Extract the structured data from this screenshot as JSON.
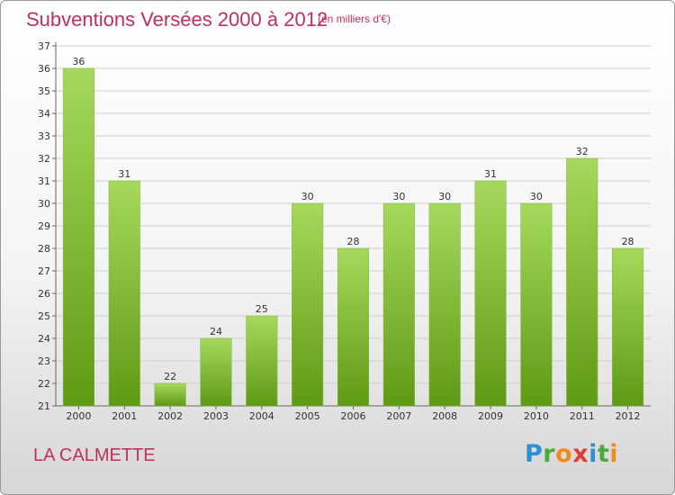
{
  "header": {
    "title": "Subventions Versées 2000 à 2012",
    "subtitle": "(en milliers d'€)"
  },
  "footer": {
    "commune": "LA CALMETTE",
    "logo_letters": [
      {
        "ch": "P",
        "color": "#2f8fd0"
      },
      {
        "ch": "r",
        "color": "#4aaa3b"
      },
      {
        "ch": "o",
        "color": "#f08a1c"
      },
      {
        "ch": "x",
        "color": "#e23a3a"
      },
      {
        "ch": "i",
        "color": "#2f8fd0"
      },
      {
        "ch": "t",
        "color": "#4aaa3b"
      },
      {
        "ch": "i",
        "color": "#f08a1c"
      }
    ]
  },
  "colors": {
    "bar_light": "#a6d95c",
    "bar_dark": "#5f9a14",
    "title": "#c0315a",
    "grid": "#cfcfcf"
  },
  "chart_data": {
    "type": "bar",
    "title": "Subventions Versées 2000 à 2012",
    "subtitle": "(en milliers d'€)",
    "categories": [
      "2000",
      "2001",
      "2002",
      "2003",
      "2004",
      "2005",
      "2006",
      "2007",
      "2008",
      "2009",
      "2010",
      "2011",
      "2012"
    ],
    "values": [
      36,
      31,
      22,
      24,
      25,
      30,
      28,
      30,
      30,
      31,
      30,
      32,
      28
    ],
    "ylim": [
      21,
      37
    ],
    "yticks": [
      21,
      22,
      23,
      24,
      25,
      26,
      27,
      28,
      29,
      30,
      31,
      32,
      33,
      34,
      35,
      36,
      37
    ],
    "grid": true,
    "xlabel": "",
    "ylabel": ""
  }
}
